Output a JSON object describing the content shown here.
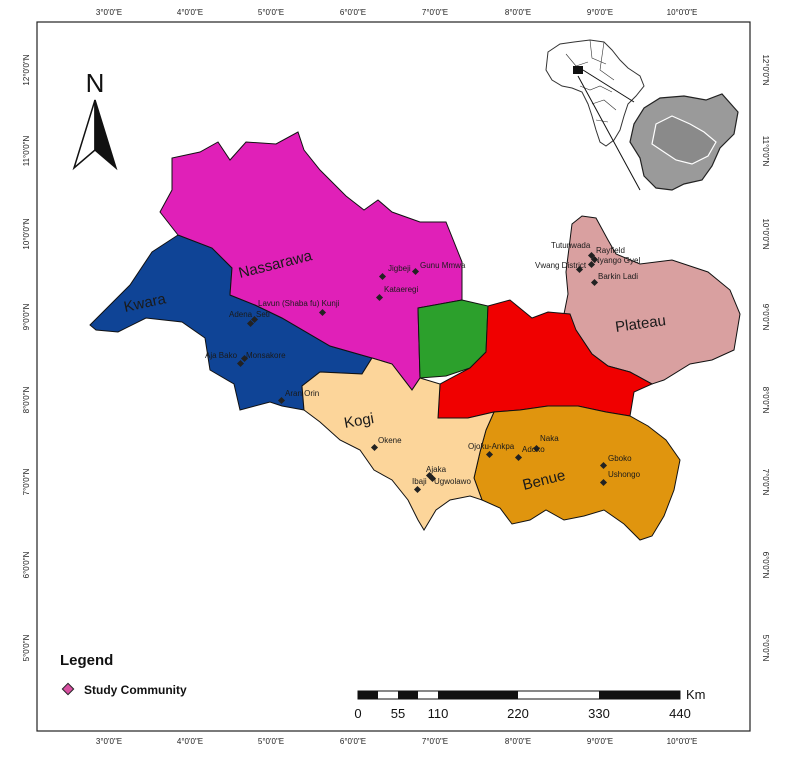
{
  "map": {
    "north_arrow_label": "N",
    "longitude_ticks": [
      "3°0'0\"E",
      "4°0'0\"E",
      "5°0'0\"E",
      "6°0'0\"E",
      "7°0'0\"E",
      "8°0'0\"E",
      "9°0'0\"E",
      "10°0'0\"E"
    ],
    "latitude_ticks": [
      "12°0'0\"N",
      "11°0'0\"N",
      "10°0'0\"N",
      "9°0'0\"N",
      "8°0'0\"N",
      "7°0'0\"N",
      "6°0'0\"N",
      "5°0'0\"N"
    ],
    "states": [
      {
        "name": "Nassarawa",
        "color": "#e020b8"
      },
      {
        "name": "Kwara",
        "color": "#0f4496"
      },
      {
        "name": "Kogi",
        "color": "#fcd59a"
      },
      {
        "name": "Benue",
        "color": "#e0950e"
      },
      {
        "name": "Plateau",
        "color": "#d9a0a0"
      },
      {
        "name": "",
        "color": "#f00000"
      },
      {
        "name": "",
        "color": "#2ca02c"
      }
    ],
    "communities": [
      "Jigbeji",
      "Gunu Mmwa",
      "Kataeregi",
      "Lavun (Shaba fu) Kunji",
      "Adena",
      "Seti",
      "Aja Bako",
      "Monsakore",
      "Aran Orin",
      "Okene",
      "Ajaka",
      "Ibaji",
      "Ugwolawo",
      "Ojoku-Ankpa",
      "Naka",
      "Adoko",
      "Gboko",
      "Ushongo",
      "Tutunwada",
      "Rayfield",
      "Vwang District",
      "Nyango Gyel",
      "Barkin Ladi"
    ]
  },
  "legend": {
    "title": "Legend",
    "item_label": "Study Community",
    "marker_color": "#d64fa0"
  },
  "scale_bar": {
    "unit": "Km",
    "labels": [
      "0",
      "55",
      "110",
      "220",
      "330",
      "440"
    ]
  },
  "inset": {
    "africa_fill": "#ffffff",
    "nigeria_fill": "#9a9a9a"
  }
}
